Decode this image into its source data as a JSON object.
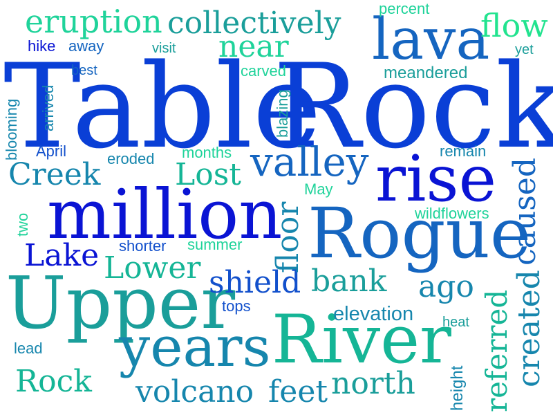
{
  "colors": {
    "background": "#ffffff",
    "royal_blue": "#0a3fd6",
    "blue": "#1250cc",
    "mid_blue": "#1565c0",
    "deep_blue": "#0a14d4",
    "teal_blue": "#1686ad",
    "teal": "#1a9e9a",
    "sea_green": "#15b596",
    "mint": "#1fd39a",
    "spring": "#22e38f"
  },
  "words": {
    "table": "Table",
    "rock_big": "Rock",
    "million": "million",
    "rogue": "Rogue",
    "upper": "Upper",
    "river": "River",
    "years": "years",
    "lava": "lava",
    "rise": "rise",
    "valley": "valley",
    "collectively": "collectively",
    "eruption": "eruption",
    "flow": "flow",
    "near": "near",
    "creek": "Creek",
    "lost": "Lost",
    "lake": "Lake",
    "lower": "Lower",
    "shield": "shield",
    "bank": "bank",
    "ago": "ago",
    "floor": "floor",
    "caused": "caused",
    "created": "created",
    "referred": "referred",
    "volcano": "volcano",
    "feet": "feet",
    "north": "north",
    "rock_small": "Rock",
    "elevation": "elevation",
    "percent": "percent",
    "hike": "hike",
    "away": "away",
    "visit": "visit",
    "yet": "yet",
    "best": "best",
    "carved": "carved",
    "meandered": "meandered",
    "arrived": "arrived",
    "blooming": "blooming",
    "blazing": "blazing",
    "april": "April",
    "eroded": "eroded",
    "months": "months",
    "remain": "remain",
    "may": "May",
    "wildflowers": "wildflowers",
    "two": "two",
    "shorter": "shorter",
    "summer": "summer",
    "tops": "tops",
    "heat": "heat",
    "lead": "lead",
    "height": "height"
  }
}
